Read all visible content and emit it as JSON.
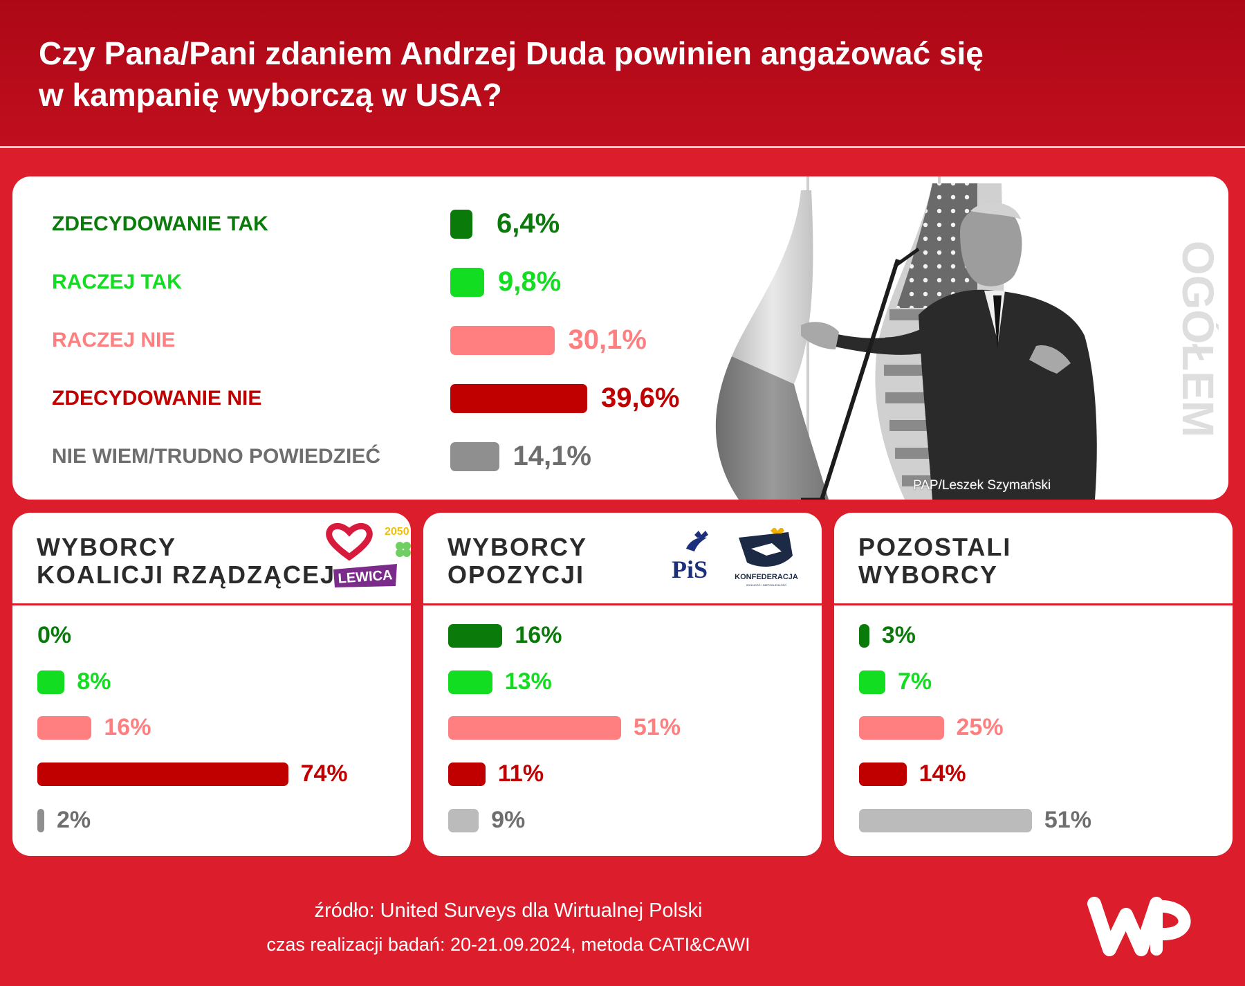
{
  "title": {
    "line1": "Czy Pana/Pani zdaniem Andrzej Duda powinien angażować się",
    "line2": "w kampanię wyborczą w USA?"
  },
  "colors": {
    "strong_yes": "#0a7a0a",
    "rather_yes": "#12dd20",
    "rather_no": "#ff7f80",
    "strong_no": "#c00000",
    "dont_know": "#8f8f8f",
    "dont_know_light": "#bbbbbb",
    "background": "#dc1d2b"
  },
  "chart_data": [
    {
      "type": "bar",
      "panel": "OGÓŁEM",
      "categories": [
        "ZDECYDOWANIE TAK",
        "RACZEJ TAK",
        "RACZEJ NIE",
        "ZDECYDOWANIE NIE",
        "NIE WIEM/TRUDNO POWIEDZIEĆ"
      ],
      "values": [
        6.4,
        9.8,
        30.1,
        39.6,
        14.1
      ],
      "labels": [
        "6,4%",
        "9,8%",
        "30,1%",
        "39,6%",
        "14,1%"
      ]
    },
    {
      "type": "bar",
      "panel_line1": "WYBORCY",
      "panel_line2": "KOALICJI RZĄDZĄCEJ",
      "values": [
        0,
        8,
        16,
        74,
        2
      ],
      "labels": [
        "0%",
        "8%",
        "16%",
        "74%",
        "2%"
      ]
    },
    {
      "type": "bar",
      "panel_line1": "WYBORCY",
      "panel_line2": "OPOZYCJI",
      "values": [
        16,
        13,
        51,
        11,
        9
      ],
      "labels": [
        "16%",
        "13%",
        "51%",
        "11%",
        "9%"
      ]
    },
    {
      "type": "bar",
      "panel_line1": "POZOSTALI",
      "panel_line2": "WYBORCY",
      "values": [
        3,
        7,
        25,
        14,
        51
      ],
      "labels": [
        "3%",
        "7%",
        "25%",
        "14%",
        "51%"
      ]
    }
  ],
  "photo_credit": "PAP/Leszek Szymański",
  "logos": {
    "lewica": "LEWICA",
    "trzecia_droga": "2050",
    "pis": "PiS",
    "konfederacja": "KONFEDERACJA",
    "konfederacja_sub": "WOLNOŚĆ I NIEPODLEGŁOŚĆ"
  },
  "footer": {
    "source": "źródło: United Surveys dla Wirtualnej Polski",
    "method": "czas realizacji badań: 20-21.09.2024, metoda CATI&CAWI"
  }
}
